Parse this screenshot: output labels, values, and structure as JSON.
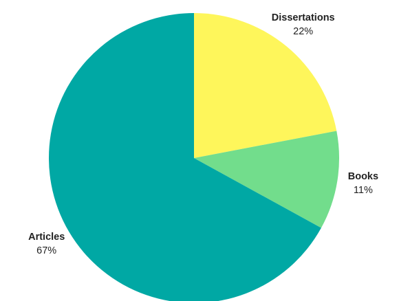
{
  "chart_data": {
    "type": "pie",
    "start_angle_deg": 0,
    "direction": "clockwise",
    "slices": [
      {
        "label": "Dissertations",
        "value": 22,
        "value_label": "22%",
        "color": "#fef65b"
      },
      {
        "label": "Books",
        "value": 11,
        "value_label": "11%",
        "color": "#72dd8c"
      },
      {
        "label": "Articles",
        "value": 67,
        "value_label": "67%",
        "color": "#00a8a4"
      }
    ]
  }
}
